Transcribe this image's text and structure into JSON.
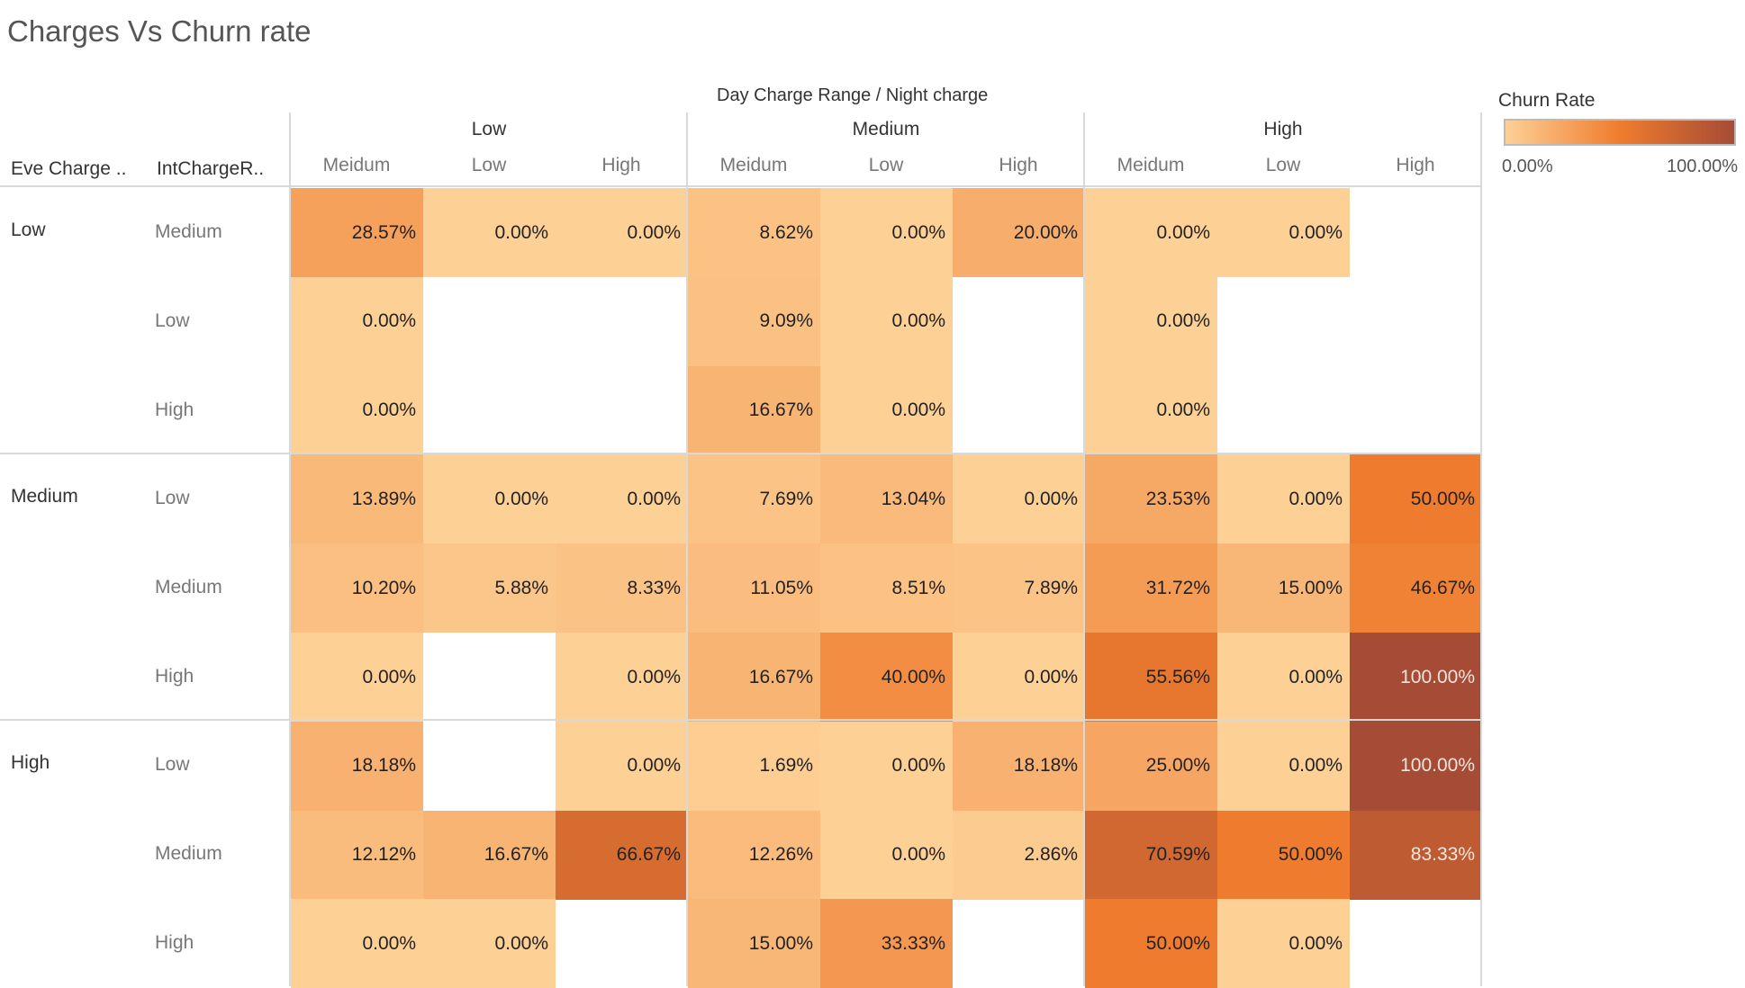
{
  "title": "Charges Vs Churn rate",
  "header": {
    "column_dimension_label": "Day Charge Range  /  Night charge",
    "row_dim_1_label": "Eve Charge ..",
    "row_dim_2_label": "IntChargeR.."
  },
  "legend": {
    "title": "Churn Rate",
    "min_label": "0.00%",
    "max_label": "100.00%",
    "color_low": "#fdd096",
    "color_mid": "#ef7c2e",
    "color_high": "#a64b36"
  },
  "chart_data": {
    "type": "heatmap",
    "title": "Charges Vs Churn rate",
    "column_groups": [
      {
        "label": "Low",
        "subs": [
          "Meidum",
          "Low",
          "High"
        ]
      },
      {
        "label": "Medium",
        "subs": [
          "Meidum",
          "Low",
          "High"
        ]
      },
      {
        "label": "High",
        "subs": [
          "Meidum",
          "Low",
          "High"
        ]
      }
    ],
    "row_groups": [
      {
        "label": "Low",
        "subs": [
          "Medium",
          "Low",
          "High"
        ]
      },
      {
        "label": "Medium",
        "subs": [
          "Low",
          "Medium",
          "High"
        ]
      },
      {
        "label": "High",
        "subs": [
          "Low",
          "Medium",
          "High"
        ]
      }
    ],
    "values": [
      [
        28.57,
        0.0,
        0.0,
        8.62,
        0.0,
        20.0,
        0.0,
        0.0,
        null
      ],
      [
        0.0,
        null,
        null,
        9.09,
        0.0,
        null,
        0.0,
        null,
        null
      ],
      [
        0.0,
        null,
        null,
        16.67,
        0.0,
        null,
        0.0,
        null,
        null
      ],
      [
        13.89,
        0.0,
        0.0,
        7.69,
        13.04,
        0.0,
        23.53,
        0.0,
        50.0
      ],
      [
        10.2,
        5.88,
        8.33,
        11.05,
        8.51,
        7.89,
        31.72,
        15.0,
        46.67
      ],
      [
        0.0,
        null,
        0.0,
        16.67,
        40.0,
        0.0,
        55.56,
        0.0,
        100.0
      ],
      [
        18.18,
        null,
        0.0,
        1.69,
        0.0,
        18.18,
        25.0,
        0.0,
        100.0
      ],
      [
        12.12,
        16.67,
        66.67,
        12.26,
        0.0,
        2.86,
        70.59,
        50.0,
        83.33
      ],
      [
        0.0,
        0.0,
        null,
        15.0,
        33.33,
        null,
        50.0,
        0.0,
        null
      ]
    ],
    "value_labels": [
      [
        "28.57%",
        "0.00%",
        "0.00%",
        "8.62%",
        "0.00%",
        "20.00%",
        "0.00%",
        "0.00%",
        ""
      ],
      [
        "0.00%",
        "",
        "",
        "9.09%",
        "0.00%",
        "",
        "0.00%",
        "",
        ""
      ],
      [
        "0.00%",
        "",
        "",
        "16.67%",
        "0.00%",
        "",
        "0.00%",
        "",
        ""
      ],
      [
        "13.89%",
        "0.00%",
        "0.00%",
        "7.69%",
        "13.04%",
        "0.00%",
        "23.53%",
        "0.00%",
        "50.00%"
      ],
      [
        "10.20%",
        "5.88%",
        "8.33%",
        "11.05%",
        "8.51%",
        "7.89%",
        "31.72%",
        "15.00%",
        "46.67%"
      ],
      [
        "0.00%",
        "",
        "0.00%",
        "16.67%",
        "40.00%",
        "0.00%",
        "55.56%",
        "0.00%",
        "100.00%"
      ],
      [
        "18.18%",
        "",
        "0.00%",
        "1.69%",
        "0.00%",
        "18.18%",
        "25.00%",
        "0.00%",
        "100.00%"
      ],
      [
        "12.12%",
        "16.67%",
        "66.67%",
        "12.26%",
        "0.00%",
        "2.86%",
        "70.59%",
        "50.00%",
        "83.33%"
      ],
      [
        "0.00%",
        "0.00%",
        "",
        "15.00%",
        "33.33%",
        "",
        "50.00%",
        "0.00%",
        ""
      ]
    ],
    "color_scale": [
      0,
      100
    ]
  }
}
